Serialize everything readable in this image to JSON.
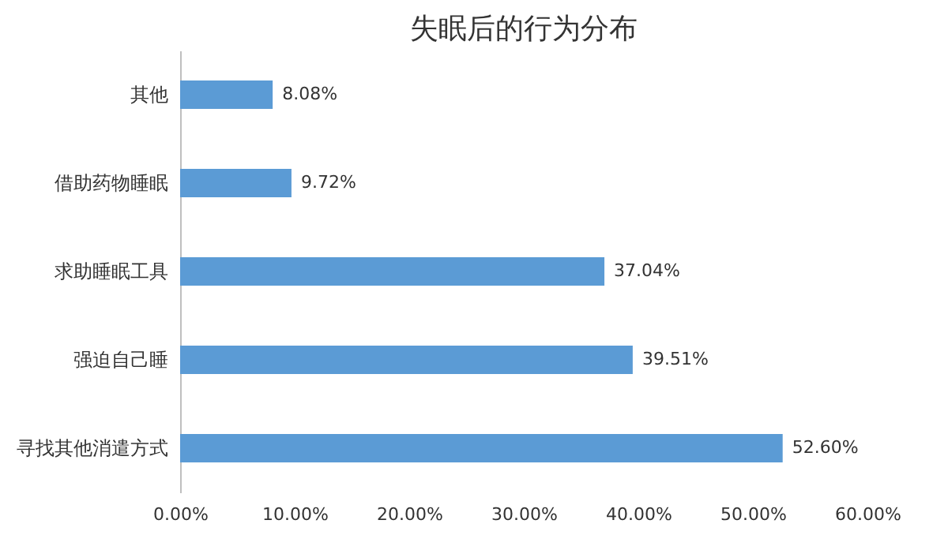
{
  "chart_data": {
    "type": "bar",
    "orientation": "horizontal",
    "title": "失眠后的行为分布",
    "categories": [
      "其他",
      "借助药物睡眠",
      "求助睡眠工具",
      "强迫自己睡",
      "寻找其他消遣方式"
    ],
    "values": [
      8.08,
      9.72,
      37.04,
      39.51,
      52.6
    ],
    "value_labels": [
      "8.08%",
      "9.72%",
      "37.04%",
      "39.51%",
      "52.60%"
    ],
    "color": "#5b9bd5",
    "xlim": [
      0,
      60
    ],
    "xticks": [
      {
        "value": 0,
        "label": "0.00%"
      },
      {
        "value": 10,
        "label": "10.00%"
      },
      {
        "value": 20,
        "label": "20.00%"
      },
      {
        "value": 30,
        "label": "30.00%"
      },
      {
        "value": 40,
        "label": "40.00%"
      },
      {
        "value": 50,
        "label": "50.00%"
      },
      {
        "value": 60,
        "label": "60.00%"
      }
    ],
    "grid": false
  }
}
